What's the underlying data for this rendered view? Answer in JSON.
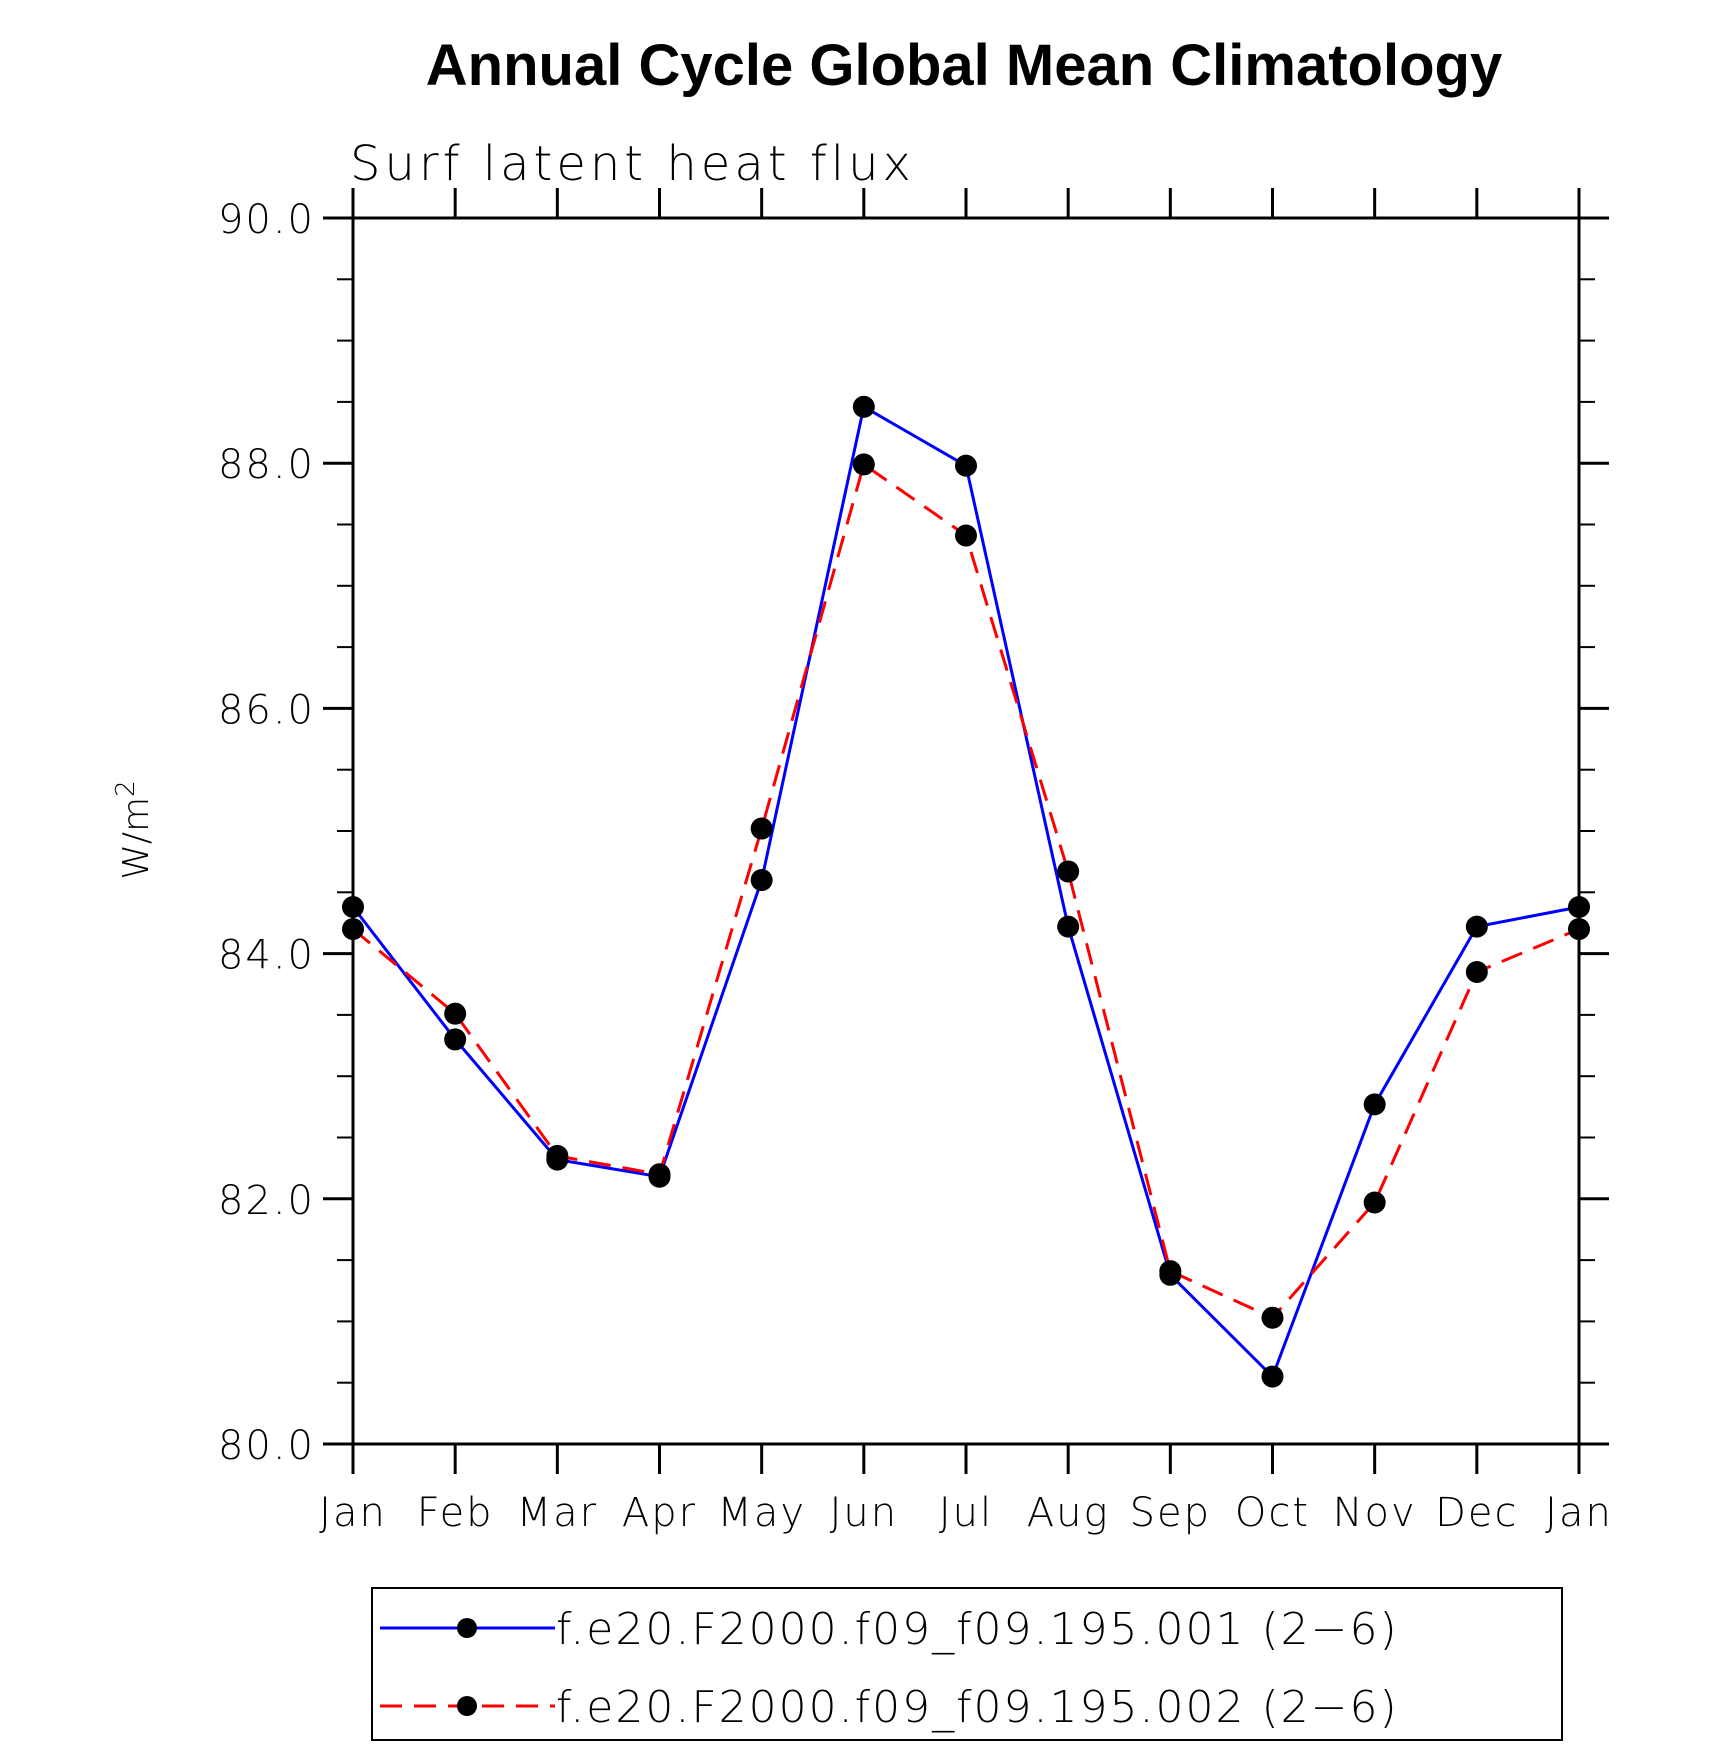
{
  "chart_data": {
    "type": "line",
    "title": "Annual Cycle Global Mean Climatology",
    "subtitle": "Surf latent heat flux",
    "ylabel_base": "W/m",
    "ylabel_sup": "2",
    "xlabel": "",
    "categories": [
      "Jan",
      "Feb",
      "Mar",
      "Apr",
      "May",
      "Jun",
      "Jul",
      "Aug",
      "Sep",
      "Oct",
      "Nov",
      "Dec",
      "Jan"
    ],
    "ylim": [
      80.0,
      90.0
    ],
    "yticks": [
      "80.0",
      "82.0",
      "84.0",
      "86.0",
      "88.0",
      "90.0"
    ],
    "grid": false,
    "legend_position": "bottom",
    "series": [
      {
        "name": "f.e20.F2000.f09_f09.195.001 (2−6)",
        "color": "#0000ff",
        "style": "solid",
        "marker": "filled-circle",
        "values": [
          84.38,
          83.3,
          82.32,
          82.18,
          84.6,
          88.46,
          87.98,
          84.22,
          81.38,
          80.55,
          82.77,
          84.22,
          84.38
        ]
      },
      {
        "name": "f.e20.F2000.f09_f09.195.002 (2−6)",
        "color": "#ff0000",
        "style": "dashed",
        "marker": "filled-circle",
        "values": [
          84.2,
          83.51,
          82.35,
          82.2,
          85.02,
          87.99,
          87.41,
          84.67,
          81.41,
          81.03,
          81.97,
          83.85,
          84.2
        ]
      }
    ]
  }
}
